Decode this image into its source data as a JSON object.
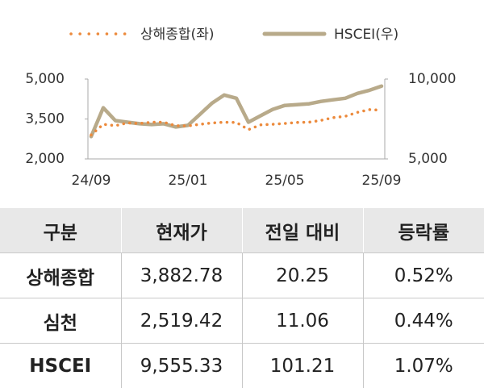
{
  "chart_data": {
    "type": "line",
    "categories": [
      "24/09",
      null,
      null,
      null,
      null,
      null,
      null,
      null,
      "25/01",
      null,
      null,
      null,
      null,
      null,
      null,
      null,
      "25/05",
      null,
      null,
      null,
      null,
      null,
      null,
      null,
      "25/09"
    ],
    "series": [
      {
        "name": "상해종합(좌)",
        "color": "#ec8a3c",
        "values": [
          2900,
          3300,
          3250,
          3350,
          3330,
          3380,
          3380,
          3250,
          3240,
          3300,
          3350,
          3380,
          3370,
          3100,
          3280,
          3300,
          3330,
          3370,
          3380,
          3450,
          3550,
          3600,
          3750,
          3850,
          3830
        ]
      },
      {
        "name": "HSCEI(우)",
        "color": "#b8aa8a",
        "axis": "y2",
        "values": [
          6400,
          8200,
          7400,
          7300,
          7200,
          7150,
          7200,
          7000,
          7100,
          7800,
          8500,
          9000,
          8800,
          7300,
          7700,
          8100,
          8350,
          8400,
          8450,
          8600,
          8700,
          8800,
          9100,
          9300,
          9555
        ]
      }
    ],
    "ylim": [
      2000,
      5000
    ],
    "yticks": [
      {
        "value": 2000,
        "label": "2,000"
      },
      {
        "value": 3500,
        "label": "3,500"
      },
      {
        "value": 5000,
        "label": "5,000"
      }
    ],
    "y2lim": [
      5000,
      10000
    ],
    "y2ticks": [
      {
        "value": 5000,
        "label": "5,000"
      },
      {
        "value": 10000,
        "label": "10,000"
      }
    ],
    "grid": false
  },
  "table": {
    "header": [
      "구분",
      "현재가",
      "전일 대비",
      "등락률"
    ],
    "rows": [
      [
        "상해종합",
        "3,882.78",
        "20.25",
        "0.52%"
      ],
      [
        "심천",
        "2,519.42",
        "11.06",
        "0.44%"
      ],
      [
        "HSCEI",
        "9,555.33",
        "101.21",
        "1.07%"
      ]
    ]
  }
}
